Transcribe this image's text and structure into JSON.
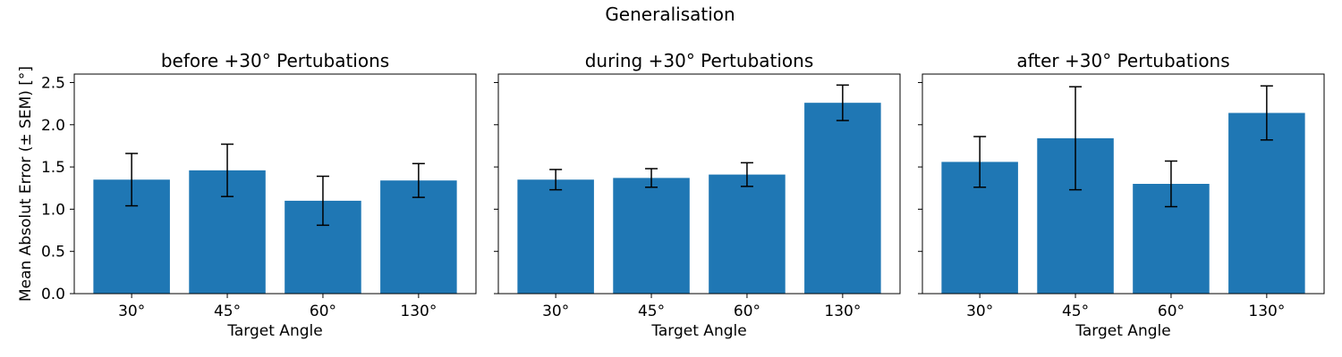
{
  "suptitle": "Generalisation",
  "ylabel": "Mean Absolut Error (± SEM) [°]",
  "xlabel": "Target Angle",
  "ylim": [
    0,
    2.6
  ],
  "yticks": [
    "0.0",
    "0.5",
    "1.0",
    "1.5",
    "2.0",
    "2.5"
  ],
  "bar_color": "#1f77b4",
  "error_color": "#000000",
  "chart_data": [
    {
      "type": "bar",
      "title": "before +30° Pertubations",
      "categories": [
        "30°",
        "45°",
        "60°",
        "130°"
      ],
      "values": [
        1.35,
        1.46,
        1.1,
        1.34
      ],
      "errors": [
        0.31,
        0.31,
        0.29,
        0.2
      ]
    },
    {
      "type": "bar",
      "title": "during +30° Pertubations",
      "categories": [
        "30°",
        "45°",
        "60°",
        "130°"
      ],
      "values": [
        1.35,
        1.37,
        1.41,
        2.26
      ],
      "errors": [
        0.12,
        0.11,
        0.14,
        0.21
      ]
    },
    {
      "type": "bar",
      "title": "after +30° Pertubations",
      "categories": [
        "30°",
        "45°",
        "60°",
        "130°"
      ],
      "values": [
        1.56,
        1.84,
        1.3,
        2.14
      ],
      "errors": [
        0.3,
        0.61,
        0.27,
        0.32
      ]
    }
  ]
}
